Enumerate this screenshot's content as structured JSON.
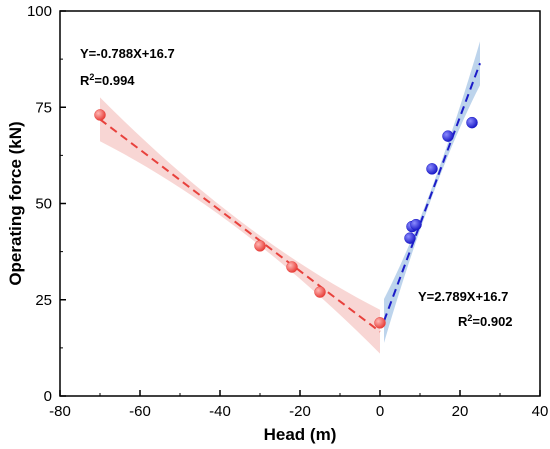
{
  "chart_data": {
    "type": "scatter",
    "xlabel": "Head (m)",
    "ylabel": "Operating force (kN)",
    "xlim": [
      -80,
      40
    ],
    "ylim": [
      0,
      100
    ],
    "xticks": [
      -80,
      -60,
      -40,
      -20,
      0,
      20,
      40
    ],
    "yticks": [
      0,
      25,
      50,
      75,
      100
    ],
    "grid": false,
    "series": [
      {
        "color": "#e8413c",
        "points": [
          {
            "x": -70,
            "y": 73
          },
          {
            "x": -30,
            "y": 39
          },
          {
            "x": -22,
            "y": 33.5
          },
          {
            "x": -15,
            "y": 27
          },
          {
            "x": 0,
            "y": 19
          }
        ],
        "fit": {
          "slope": -0.788,
          "intercept": 16.7,
          "x_range": [
            -70,
            0
          ],
          "equation": "Y=-0.788X+16.7",
          "r2_label": "R",
          "r2_value": "=0.994",
          "band_color": "#f6c8c6"
        }
      },
      {
        "color": "#1c1cc8",
        "points": [
          {
            "x": 7.5,
            "y": 41
          },
          {
            "x": 8,
            "y": 44
          },
          {
            "x": 9,
            "y": 44.5
          },
          {
            "x": 13,
            "y": 59
          },
          {
            "x": 17,
            "y": 67.5
          },
          {
            "x": 23,
            "y": 71
          }
        ],
        "fit": {
          "slope": 2.789,
          "intercept": 16.7,
          "x_range": [
            1,
            25
          ],
          "equation": "Y=2.789X+16.7",
          "r2_label": "R",
          "r2_value": "=0.902",
          "band_color": "#a7c6e6"
        }
      }
    ]
  }
}
